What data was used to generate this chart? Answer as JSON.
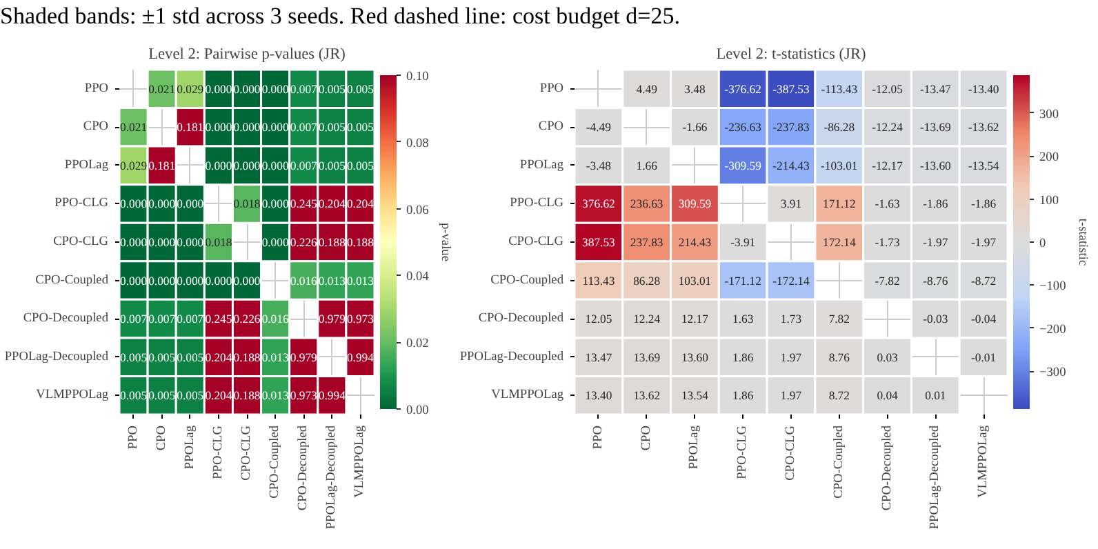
{
  "chart_data": [
    {
      "type": "heatmap",
      "title": "Level 2: Pairwise p-values (JR)",
      "annotations": [
        "Shaded bands: ±1 std across 3 seeds. Red dashed line: cost budget d=25."
      ],
      "categories": [
        "PPO",
        "CPO",
        "PPOLag",
        "PPO-CLG",
        "CPO-CLG",
        "CPO-Coupled",
        "CPO-Decoupled",
        "PPOLag-Decoupled",
        "VLMPPOLag"
      ],
      "y_categories": [
        "PPO",
        "CPO",
        "PPOLag",
        "PPO-CLG",
        "CPO-CLG",
        "CPO-Coupled",
        "CPO-Decoupled",
        "PPOLag-Decoupled",
        "VLMPPOLag"
      ],
      "cells": [
        [
          null,
          0.021,
          0.029,
          0.0,
          0.0,
          0.0,
          0.007,
          0.005,
          0.005
        ],
        [
          0.021,
          null,
          0.181,
          0.0,
          0.0,
          0.0,
          0.007,
          0.005,
          0.005
        ],
        [
          0.029,
          0.181,
          null,
          0.0,
          0.0,
          0.0,
          0.007,
          0.005,
          0.005
        ],
        [
          0.0,
          0.0,
          0.0,
          null,
          0.018,
          0.0,
          0.245,
          0.204,
          0.204
        ],
        [
          0.0,
          0.0,
          0.0,
          0.018,
          null,
          0.0,
          0.226,
          0.188,
          0.188
        ],
        [
          0.0,
          0.0,
          0.0,
          0.0,
          0.0,
          null,
          0.016,
          0.013,
          0.013
        ],
        [
          0.007,
          0.007,
          0.007,
          0.245,
          0.226,
          0.016,
          null,
          0.979,
          0.973
        ],
        [
          0.005,
          0.005,
          0.005,
          0.204,
          0.188,
          0.013,
          0.979,
          null,
          0.994
        ],
        [
          0.005,
          0.005,
          0.005,
          0.204,
          0.188,
          0.013,
          0.973,
          0.994,
          null
        ]
      ],
      "cell_labels": [
        [
          null,
          "0.021",
          "0.029",
          "0.000",
          "0.000",
          "0.000",
          "0.007",
          "0.005",
          "0.005"
        ],
        [
          "0.021",
          null,
          "0.181",
          "0.000",
          "0.000",
          "0.000",
          "0.007",
          "0.005",
          "0.005"
        ],
        [
          "0.029",
          "0.181",
          null,
          "0.000",
          "0.000",
          "0.000",
          "0.007",
          "0.005",
          "0.005"
        ],
        [
          "0.000",
          "0.000",
          "0.000",
          null,
          "0.018",
          "0.000",
          "0.245",
          "0.204",
          "0.204"
        ],
        [
          "0.000",
          "0.000",
          "0.000",
          "0.018",
          null,
          "0.000",
          "0.226",
          "0.188",
          "0.188"
        ],
        [
          "0.000",
          "0.000",
          "0.000",
          "0.000",
          "0.000",
          null,
          "0.016",
          "0.013",
          "0.013"
        ],
        [
          "0.007",
          "0.007",
          "0.007",
          "0.245",
          "0.226",
          "0.016",
          null,
          "0.979",
          "0.973"
        ],
        [
          "0.005",
          "0.005",
          "0.005",
          "0.204",
          "0.188",
          "0.013",
          "0.979",
          null,
          "0.994"
        ],
        [
          "0.005",
          "0.005",
          "0.005",
          "0.204",
          "0.188",
          "0.013",
          "0.973",
          "0.994",
          null
        ]
      ],
      "clim": [
        0.0,
        0.1
      ],
      "cticks": [
        {
          "value": 0,
          "label": "0.00"
        },
        {
          "value": 0.02,
          "label": "0.02"
        },
        {
          "value": 0.04,
          "label": "0.04"
        },
        {
          "value": 0.06,
          "label": "0.06"
        },
        {
          "value": 0.08,
          "label": "0.08"
        },
        {
          "value": 0.1,
          "label": "0.10"
        }
      ],
      "clabel": "p-value",
      "grid": true
    },
    {
      "type": "heatmap",
      "title": "Level 2: t-statistics (JR)",
      "categories": [
        "PPO",
        "CPO",
        "PPOLag",
        "PPO-CLG",
        "CPO-CLG",
        "CPO-Coupled",
        "CPO-Decoupled",
        "PPOLag-Decoupled",
        "VLMPPOLag"
      ],
      "y_categories": [
        "PPO",
        "CPO",
        "PPOLag",
        "PPO-CLG",
        "CPO-CLG",
        "CPO-Coupled",
        "CPO-Decoupled",
        "PPOLag-Decoupled",
        "VLMPPOLag"
      ],
      "cells": [
        [
          null,
          4.49,
          3.48,
          -376.62,
          -387.53,
          -113.43,
          -12.05,
          -13.47,
          -13.4
        ],
        [
          -4.49,
          null,
          -1.66,
          -236.63,
          -237.83,
          -86.28,
          -12.24,
          -13.69,
          -13.62
        ],
        [
          -3.48,
          1.66,
          null,
          -309.59,
          -214.43,
          -103.01,
          -12.17,
          -13.6,
          -13.54
        ],
        [
          376.62,
          236.63,
          309.59,
          null,
          3.91,
          171.12,
          -1.63,
          -1.86,
          -1.86
        ],
        [
          387.53,
          237.83,
          214.43,
          -3.91,
          null,
          172.14,
          -1.73,
          -1.97,
          -1.97
        ],
        [
          113.43,
          86.28,
          103.01,
          -171.12,
          -172.14,
          null,
          -7.82,
          -8.76,
          -8.72
        ],
        [
          12.05,
          12.24,
          12.17,
          1.63,
          1.73,
          7.82,
          null,
          -0.03,
          -0.04
        ],
        [
          13.47,
          13.69,
          13.6,
          1.86,
          1.97,
          8.76,
          0.03,
          null,
          -0.01
        ],
        [
          13.4,
          13.62,
          13.54,
          1.86,
          1.97,
          8.72,
          0.04,
          0.01,
          null
        ]
      ],
      "cell_labels": [
        [
          null,
          "4.49",
          "3.48",
          "-376.62",
          "-387.53",
          "-113.43",
          "-12.05",
          "-13.47",
          "-13.40"
        ],
        [
          "-4.49",
          null,
          "-1.66",
          "-236.63",
          "-237.83",
          "-86.28",
          "-12.24",
          "-13.69",
          "-13.62"
        ],
        [
          "-3.48",
          "1.66",
          null,
          "-309.59",
          "-214.43",
          "-103.01",
          "-12.17",
          "-13.60",
          "-13.54"
        ],
        [
          "376.62",
          "236.63",
          "309.59",
          null,
          "3.91",
          "171.12",
          "-1.63",
          "-1.86",
          "-1.86"
        ],
        [
          "387.53",
          "237.83",
          "214.43",
          "-3.91",
          null,
          "172.14",
          "-1.73",
          "-1.97",
          "-1.97"
        ],
        [
          "113.43",
          "86.28",
          "103.01",
          "-171.12",
          "-172.14",
          null,
          "-7.82",
          "-8.76",
          "-8.72"
        ],
        [
          "12.05",
          "12.24",
          "12.17",
          "1.63",
          "1.73",
          "7.82",
          null,
          "-0.03",
          "-0.04"
        ],
        [
          "13.47",
          "13.69",
          "13.60",
          "1.86",
          "1.97",
          "8.76",
          "0.03",
          null,
          "-0.01"
        ],
        [
          "13.40",
          "13.62",
          "13.54",
          "1.86",
          "1.97",
          "8.72",
          "0.04",
          "0.01",
          null
        ]
      ],
      "clim": [
        -387.53,
        387.53
      ],
      "cticks": [
        {
          "value": -300,
          "label": "−300"
        },
        {
          "value": -200,
          "label": "−200"
        },
        {
          "value": -100,
          "label": "−100"
        },
        0,
        100,
        200,
        300
      ],
      "clabel": "t-statistic",
      "grid": true
    }
  ]
}
